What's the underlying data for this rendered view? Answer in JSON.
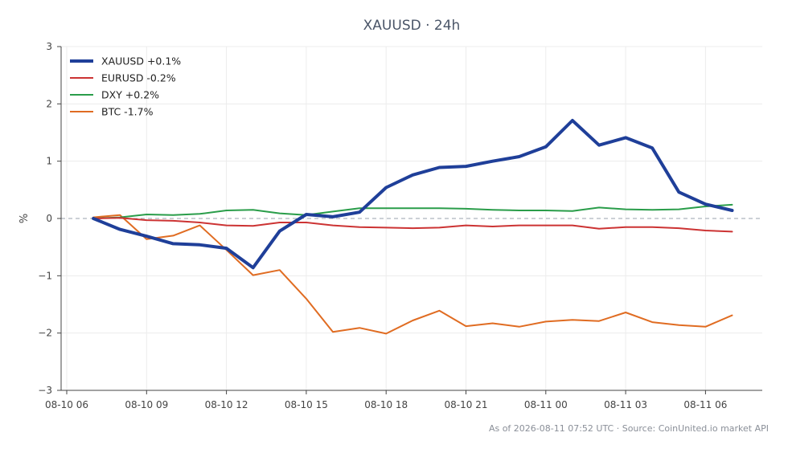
{
  "chart_data": {
    "type": "line",
    "title": "XAUUSD · 24h",
    "ylabel": "%",
    "xlabel": "",
    "ylim": [
      -3,
      3
    ],
    "y_ticks": [
      3,
      2,
      1,
      0,
      -1,
      -2,
      -3
    ],
    "y_tick_labels": [
      "3",
      "2",
      "1",
      "0",
      "−1",
      "−2",
      "−3"
    ],
    "x": [
      "08-10 07",
      "08-10 08",
      "08-10 09",
      "08-10 10",
      "08-10 11",
      "08-10 12",
      "08-10 13",
      "08-10 14",
      "08-10 15",
      "08-10 16",
      "08-10 17",
      "08-10 18",
      "08-10 19",
      "08-10 20",
      "08-10 21",
      "08-10 22",
      "08-10 23",
      "08-11 00",
      "08-11 01",
      "08-11 02",
      "08-11 03",
      "08-11 04",
      "08-11 05",
      "08-11 06",
      "08-11 07"
    ],
    "x_ticks": [
      "08-10 06",
      "08-10 09",
      "08-10 12",
      "08-10 15",
      "08-10 18",
      "08-10 21",
      "08-11 00",
      "08-11 03",
      "08-11 06"
    ],
    "grid": true,
    "zero_line": true,
    "legend_position": "top-left",
    "series": [
      {
        "name": "XAUUSD +0.1%",
        "color": "#1f3f99",
        "values": [
          0.0,
          -0.19,
          -0.31,
          -0.44,
          -0.46,
          -0.52,
          -0.86,
          -0.22,
          0.07,
          0.03,
          0.11,
          0.54,
          0.76,
          0.89,
          0.91,
          1.0,
          1.08,
          1.25,
          1.71,
          1.28,
          1.41,
          1.23,
          0.46,
          0.25,
          0.14
        ]
      },
      {
        "name": "EURUSD -0.2%",
        "color": "#cc3333",
        "values": [
          0.0,
          0.01,
          -0.03,
          -0.04,
          -0.07,
          -0.12,
          -0.13,
          -0.07,
          -0.07,
          -0.12,
          -0.15,
          -0.16,
          -0.17,
          -0.16,
          -0.12,
          -0.14,
          -0.12,
          -0.12,
          -0.12,
          -0.18,
          -0.15,
          -0.15,
          -0.17,
          -0.21,
          -0.23
        ]
      },
      {
        "name": "DXY +0.2%",
        "color": "#2a9d4a",
        "values": [
          0.0,
          0.02,
          0.07,
          0.06,
          0.08,
          0.14,
          0.15,
          0.09,
          0.06,
          0.12,
          0.18,
          0.18,
          0.18,
          0.18,
          0.17,
          0.15,
          0.14,
          0.14,
          0.13,
          0.19,
          0.16,
          0.15,
          0.16,
          0.21,
          0.24
        ]
      },
      {
        "name": "BTC -1.7%",
        "color": "#e06c22",
        "values": [
          0.02,
          0.06,
          -0.36,
          -0.3,
          -0.12,
          -0.55,
          -0.99,
          -0.9,
          -1.4,
          -1.98,
          -1.91,
          -2.01,
          -1.78,
          -1.61,
          -1.88,
          -1.83,
          -1.89,
          -1.8,
          -1.77,
          -1.79,
          -1.64,
          -1.81,
          -1.86,
          -1.89,
          -1.69
        ]
      }
    ]
  },
  "footer": "As of 2026-08-11 07:52 UTC · Source: CoinUnited.io market API"
}
